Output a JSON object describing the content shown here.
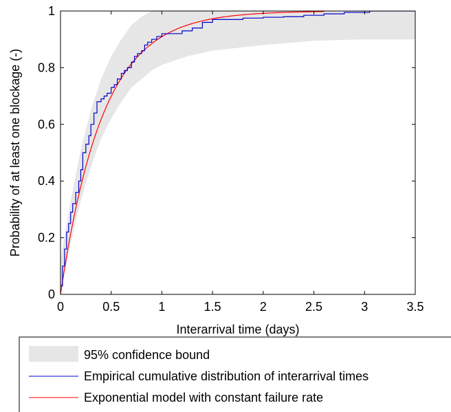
{
  "chart_data": {
    "type": "line",
    "title": "",
    "xlabel": "Interarrival time (days)",
    "ylabel": "Probability of at least one blockage (-)",
    "xlim": [
      0,
      3.5
    ],
    "ylim": [
      0,
      1
    ],
    "x_ticks": [
      "0",
      "0.5",
      "1",
      "1.5",
      "2",
      "2.5",
      "3",
      "3.5"
    ],
    "y_ticks": [
      "0",
      "0.2",
      "0.4",
      "0.6",
      "0.8",
      "1"
    ],
    "grid": false,
    "legend_position": "below",
    "colors": {
      "confidence_band": "#e6e6e6",
      "empirical": "#0000cc",
      "exponential": "#ff0000"
    },
    "series": [
      {
        "name": "95% confidence bound",
        "kind": "band",
        "x": [
          0,
          0.1,
          0.2,
          0.3,
          0.4,
          0.5,
          0.6,
          0.7,
          0.8,
          0.9,
          1.0,
          1.25,
          1.5,
          2.0,
          2.5,
          3.0,
          3.5
        ],
        "lower": [
          0.0,
          0.18,
          0.33,
          0.45,
          0.55,
          0.62,
          0.68,
          0.73,
          0.76,
          0.79,
          0.81,
          0.84,
          0.86,
          0.88,
          0.895,
          0.9,
          0.9
        ],
        "upper": [
          0.12,
          0.33,
          0.51,
          0.65,
          0.76,
          0.84,
          0.9,
          0.95,
          0.98,
          1.0,
          1.0,
          1.0,
          1.0,
          1.0,
          1.0,
          1.0,
          1.0
        ]
      },
      {
        "name": "Empirical cumulative distribution of interarrival times",
        "kind": "step",
        "x": [
          0,
          0.02,
          0.04,
          0.06,
          0.08,
          0.1,
          0.12,
          0.15,
          0.18,
          0.2,
          0.22,
          0.25,
          0.28,
          0.3,
          0.33,
          0.36,
          0.4,
          0.43,
          0.46,
          0.5,
          0.53,
          0.56,
          0.6,
          0.63,
          0.66,
          0.7,
          0.73,
          0.76,
          0.8,
          0.83,
          0.86,
          0.9,
          0.95,
          1.0,
          1.1,
          1.2,
          1.3,
          1.4,
          1.5,
          1.6,
          1.8,
          2.0,
          2.2,
          2.4,
          2.6,
          2.8,
          3.05,
          3.5
        ],
        "y": [
          0.03,
          0.1,
          0.16,
          0.22,
          0.25,
          0.29,
          0.32,
          0.36,
          0.4,
          0.44,
          0.5,
          0.53,
          0.56,
          0.6,
          0.64,
          0.68,
          0.69,
          0.7,
          0.71,
          0.73,
          0.74,
          0.76,
          0.78,
          0.79,
          0.8,
          0.82,
          0.84,
          0.85,
          0.86,
          0.88,
          0.89,
          0.9,
          0.91,
          0.92,
          0.92,
          0.93,
          0.94,
          0.96,
          0.97,
          0.97,
          0.975,
          0.978,
          0.98,
          0.985,
          0.99,
          0.995,
          1.0,
          1.0
        ]
      },
      {
        "name": "Exponential model with constant failure rate",
        "kind": "line",
        "rate": 2.4,
        "x_max": 2.6
      }
    ]
  }
}
